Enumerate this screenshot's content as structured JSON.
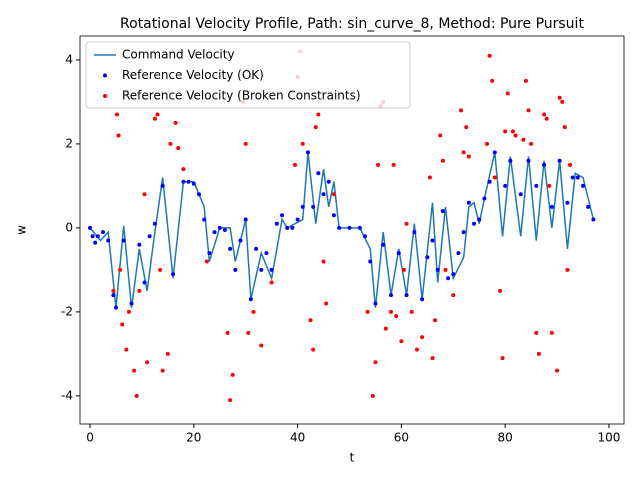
{
  "chart_data": {
    "type": "line-scatter",
    "title": "Rotational Velocity Profile, Path: sin_curve_8, Method: Pure Pursuit",
    "x_label": "t",
    "y_label": "w",
    "xlim": [
      -1.93,
      102.9
    ],
    "ylim": [
      -4.67,
      4.57
    ],
    "xticks": [
      0,
      20,
      40,
      60,
      80,
      100
    ],
    "yticks": [
      -4,
      -2,
      0,
      2,
      4
    ],
    "legend": "upper left",
    "series": [
      {
        "name": "Command Velocity",
        "kind": "line",
        "color": "#1f77b4",
        "x": [
          0,
          2,
          3.5,
          5,
          6.5,
          8,
          9.5,
          11,
          12.5,
          14,
          16,
          18,
          20,
          22,
          23,
          25,
          27,
          28,
          30,
          31,
          33,
          35,
          37,
          38,
          41,
          42,
          43.5,
          45,
          46,
          47,
          48,
          52,
          54,
          55,
          56.5,
          58,
          59.5,
          61,
          62.5,
          64,
          66,
          67,
          68.5,
          70,
          72,
          73,
          74,
          75,
          76,
          78,
          79.5,
          81,
          83,
          84.5,
          86,
          87.5,
          89,
          90.5,
          92,
          93.5,
          95,
          97
        ],
        "values": [
          0,
          -0.3,
          -0.1,
          -1.9,
          0.05,
          -1.9,
          -0.5,
          -1.5,
          -0.1,
          1.2,
          -1.2,
          1.1,
          1.1,
          0.5,
          -0.8,
          0,
          0,
          -0.8,
          0.2,
          -1.7,
          -0.6,
          -1.2,
          0.2,
          0,
          0.2,
          1.8,
          0.1,
          1.4,
          0.5,
          1.1,
          0,
          0,
          -0.5,
          -1.9,
          -0.1,
          -1.6,
          -0.5,
          -1.6,
          0.1,
          -1.7,
          0.6,
          -1.3,
          0.5,
          -1.2,
          -0.7,
          0.5,
          0.6,
          0.1,
          0.7,
          1.8,
          -0.2,
          1.7,
          -0.2,
          1.7,
          -0.3,
          1.6,
          0,
          1.6,
          -0.5,
          1.3,
          1.2,
          0.2
        ]
      },
      {
        "name": "Reference Velocity (OK)",
        "kind": "scatter",
        "color": "#0000ff",
        "x": [
          0,
          0.5,
          1,
          1.5,
          2.5,
          3.5,
          4.5,
          5,
          6.5,
          8,
          9.5,
          10.5,
          11.5,
          12.5,
          14,
          16,
          18,
          19,
          20,
          21,
          22,
          23,
          24,
          25,
          26,
          27,
          28,
          29,
          30,
          31,
          32,
          33,
          34,
          35,
          36,
          37,
          38,
          39,
          40,
          41,
          42,
          43,
          44,
          45,
          46,
          47,
          48,
          50,
          52,
          53,
          54,
          55,
          56.5,
          58,
          59.5,
          61,
          62.5,
          64,
          65,
          66,
          67,
          68,
          69,
          70,
          71,
          72,
          73,
          74,
          75,
          76,
          77,
          78,
          80,
          81,
          83,
          84.5,
          86,
          87.5,
          89,
          90.5,
          92,
          93,
          94,
          95,
          96,
          97
        ],
        "values": [
          0,
          -0.2,
          -0.35,
          -0.2,
          -0.1,
          -0.3,
          -1.6,
          -1.9,
          -0.3,
          -1.8,
          -0.4,
          -1.3,
          -0.2,
          0.1,
          1.0,
          -1.1,
          1.1,
          1.1,
          1.05,
          0.8,
          0.2,
          -0.6,
          -0.1,
          0,
          -0.05,
          -0.5,
          -1.0,
          -0.3,
          0.2,
          -1.7,
          -0.5,
          -1.0,
          -0.6,
          -1.0,
          0.1,
          0.3,
          0,
          0,
          0.2,
          0.5,
          1.8,
          0.5,
          1.3,
          0.8,
          1.1,
          0.3,
          0,
          0,
          0,
          -0.2,
          -0.8,
          -1.8,
          -0.4,
          -1.6,
          -0.6,
          -1.6,
          -0.1,
          -1.7,
          -0.7,
          -0.3,
          -1.0,
          0.4,
          -1.2,
          -1.1,
          -0.6,
          -0.1,
          0.6,
          0.1,
          0.2,
          0.7,
          1.1,
          1.8,
          1.0,
          1.6,
          0.8,
          1.6,
          1.0,
          1.5,
          0.5,
          1.6,
          0.6,
          1.2,
          1.2,
          1.0,
          0.5,
          0.2
        ]
      },
      {
        "name": "Reference Velocity (Broken Constraints)",
        "kind": "scatter",
        "color": "#ff0000",
        "x": [
          4.5,
          5.2,
          5.5,
          5.8,
          6.2,
          7,
          7.5,
          8.5,
          9,
          9.5,
          10.5,
          11,
          12.5,
          13,
          13.5,
          14,
          15,
          15.5,
          16.5,
          17,
          18,
          22.5,
          26.5,
          27,
          27.5,
          29.5,
          30,
          30.5,
          31.5,
          33,
          35,
          39.5,
          40,
          40.5,
          41,
          42.5,
          43,
          43.5,
          44,
          45,
          45.5,
          47,
          53.5,
          54.5,
          55,
          55.5,
          56,
          56.5,
          57,
          58,
          58.5,
          59,
          60,
          60.5,
          61,
          62,
          63,
          64,
          65.5,
          66,
          66.5,
          67.5,
          68,
          68.5,
          70,
          71.5,
          72,
          72.5,
          73,
          76.5,
          77,
          77.5,
          78,
          79,
          79.5,
          80,
          80.5,
          81.5,
          82,
          83.5,
          84,
          84.5,
          85,
          86,
          86.5,
          87.5,
          88,
          88.5,
          89,
          90,
          90.5,
          91,
          91.5,
          92,
          92.5
        ],
        "values": [
          -1.5,
          2.7,
          2.2,
          -1,
          -2.3,
          -2.9,
          -2,
          -3.4,
          -4.0,
          -1.5,
          0.8,
          -3.2,
          2.6,
          2.7,
          -1.0,
          -3.4,
          -3.0,
          2.0,
          2.5,
          1.9,
          1.4,
          -0.8,
          -2.5,
          -4.1,
          -3.5,
          3.0,
          2.0,
          -2.5,
          -2.0,
          -2.8,
          -1.3,
          1.5,
          3.6,
          4.2,
          2.0,
          -2.2,
          -2.9,
          2.4,
          2.7,
          -0.8,
          -1.8,
          0.8,
          -2.0,
          -4.0,
          -3.2,
          1.5,
          2.9,
          3.0,
          -2.4,
          -2.0,
          1.5,
          -2.1,
          -2.7,
          -1.0,
          0.1,
          -2.0,
          -2.9,
          -2.6,
          1.2,
          -3.1,
          -2.2,
          2.2,
          1.6,
          -1.0,
          -1.6,
          2.8,
          1.8,
          2.4,
          1.7,
          2.0,
          4.1,
          3.5,
          1.2,
          -1.5,
          -3.1,
          2.3,
          3.2,
          2.3,
          2.2,
          2.1,
          3.5,
          2.8,
          2.0,
          -2.5,
          -3.0,
          2.7,
          2.6,
          1.0,
          -2.5,
          -3.4,
          3.1,
          3.0,
          2.4,
          -1.0,
          1.5
        ]
      }
    ]
  }
}
